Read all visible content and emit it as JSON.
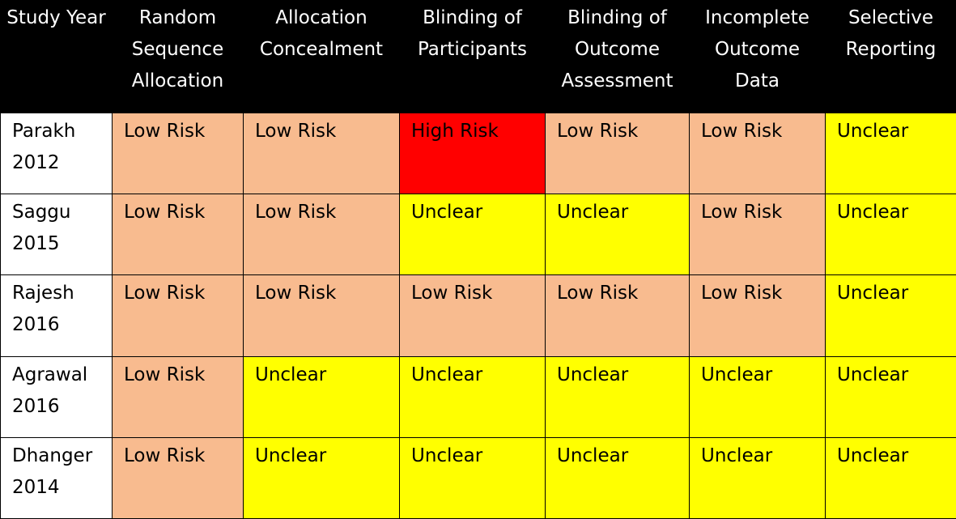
{
  "headers": [
    "Study Year",
    "Random Sequence Allocation",
    "Allocation Concealment",
    "Blinding of Participants",
    "Blinding of Outcome Assessment",
    "Incomplete Outcome Data",
    "Selective Reporting"
  ],
  "rows": [
    {
      "study": "Parakh",
      "year": "2012",
      "cells": [
        "Low Risk",
        "Low Risk",
        "High Risk",
        "Low Risk",
        "Low Risk",
        "Unclear"
      ]
    },
    {
      "study": "Saggu",
      "year": "2015",
      "cells": [
        "Low Risk",
        "Low Risk",
        "Unclear",
        "Unclear",
        "Low Risk",
        "Unclear"
      ]
    },
    {
      "study": "Rajesh",
      "year": "2016",
      "cells": [
        "Low Risk",
        "Low Risk",
        "Low Risk",
        "Low Risk",
        "Low Risk",
        "Unclear"
      ]
    },
    {
      "study": "Agrawal",
      "year": "2016",
      "cells": [
        "Low Risk",
        "Unclear",
        "Unclear",
        "Unclear",
        "Unclear",
        "Unclear"
      ]
    },
    {
      "study": "Dhanger",
      "year": "2014",
      "cells": [
        "Low Risk",
        "Unclear",
        "Unclear",
        "Unclear",
        "Unclear",
        "Unclear"
      ]
    }
  ],
  "colors": {
    "header_background": "#000000",
    "low_risk": "#f8bb8f",
    "high_risk": "#ff0000",
    "unclear": "#ffff00"
  }
}
